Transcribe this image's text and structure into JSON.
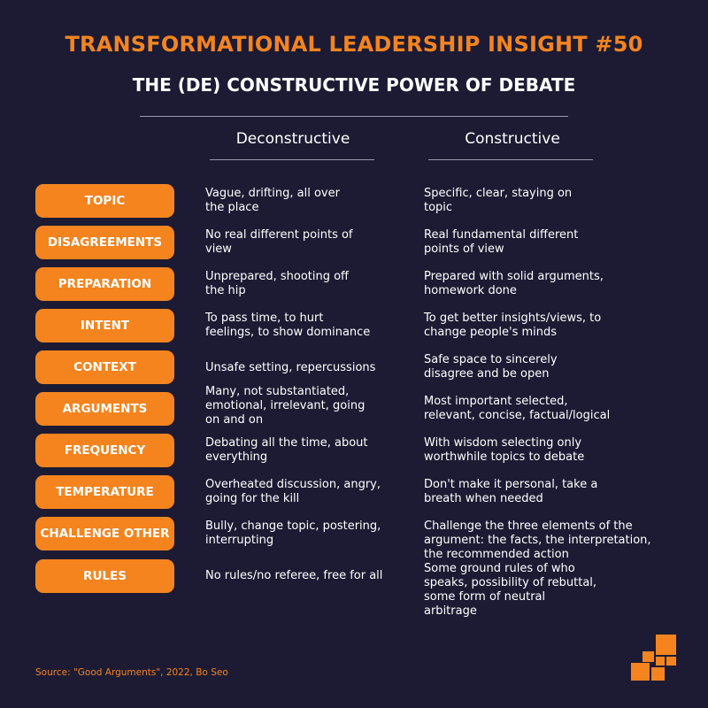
{
  "header": {
    "title": "TRANSFORMATIONAL LEADERSHIP INSIGHT #50",
    "subtitle": "THE (DE) CONSTRUCTIVE POWER OF DEBATE"
  },
  "columns": {
    "deconstructive": "Deconstructive",
    "constructive": "Constructive"
  },
  "rows": [
    {
      "label": "TOPIC",
      "deconstructive": "Vague, drifting, all over\nthe place",
      "constructive": "Specific, clear, staying on\ntopic"
    },
    {
      "label": "DISAGREEMENTS",
      "deconstructive": "No real different points of\nview",
      "constructive": "Real fundamental different\npoints of view"
    },
    {
      "label": "PREPARATION",
      "deconstructive": "Unprepared, shooting off\nthe hip",
      "constructive": "Prepared with solid arguments,\nhomework done"
    },
    {
      "label": "INTENT",
      "deconstructive": "To pass time, to hurt\nfeelings, to show dominance",
      "constructive": "To get better insights/views, to\nchange people's minds"
    },
    {
      "label": "CONTEXT",
      "deconstructive": "Unsafe setting, repercussions",
      "constructive": "Safe space to sincerely\ndisagree and be open"
    },
    {
      "label": "ARGUMENTS",
      "deconstructive": "Many, not substantiated,\nemotional, irrelevant, going\non and on",
      "constructive": "Most important selected,\nrelevant, concise, factual/logical"
    },
    {
      "label": "FREQUENCY",
      "deconstructive": "Debating all the time, about\neverything",
      "constructive": "With wisdom selecting only\nworthwhile topics to debate"
    },
    {
      "label": "TEMPERATURE",
      "deconstructive": "Overheated discussion, angry,\ngoing for the kill",
      "constructive": "Don't make it personal, take a\nbreath when needed"
    },
    {
      "label": "CHALLENGE OTHER",
      "deconstructive": "Bully, change topic, postering,\ninterrupting",
      "constructive": "Challenge the three elements of the\nargument: the facts, the interpretation,\nthe recommended action"
    },
    {
      "label": "RULES",
      "deconstructive": "No rules/no referee, free for all",
      "constructive": "Some ground rules of who\nspeaks, possibility of rebuttal,\nsome form of neutral\narbitrage"
    }
  ],
  "footer": {
    "source": "Source: \"Good Arguments\", 2022, Bo Seo"
  },
  "colors": {
    "background": "#1c1b33",
    "accent": "#f5841f",
    "text": "#ffffff"
  },
  "icons": {
    "logo": "orange-staircase-squares-logo-icon"
  }
}
